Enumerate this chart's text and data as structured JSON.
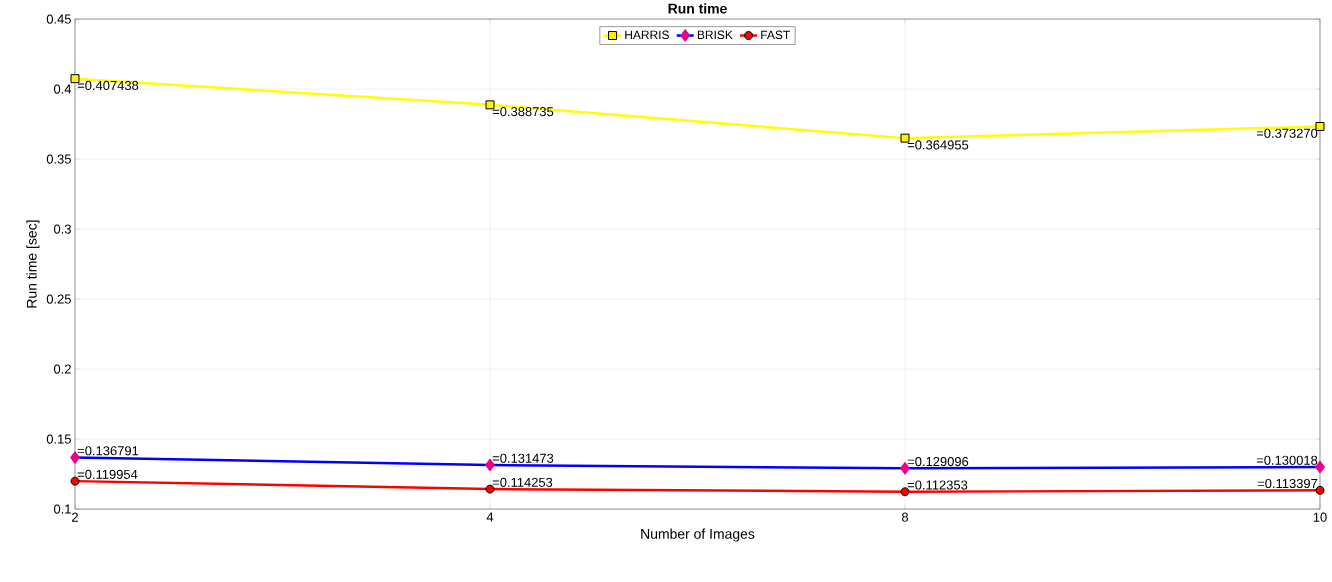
{
  "chart_data": {
    "type": "line",
    "title": "Run time",
    "xlabel": "Number of Images",
    "ylabel": "Run time [sec]",
    "categories": [
      "2",
      "4",
      "8",
      "10"
    ],
    "series": [
      {
        "name": "HARRIS",
        "color": "#ffff00",
        "marker": "square",
        "values": [
          0.407438,
          0.388735,
          0.364955,
          0.37327
        ],
        "value_labels": [
          "=0.407438",
          "=0.388735",
          "=0.364955",
          "=0.373270"
        ]
      },
      {
        "name": "BRISK",
        "color": "#0000ff",
        "marker": "diamond",
        "values": [
          0.136791,
          0.131473,
          0.129096,
          0.130018
        ],
        "value_labels": [
          "=0.136791",
          "=0.131473",
          "=0.129096",
          "=0.130018"
        ]
      },
      {
        "name": "FAST",
        "color": "#ff0000",
        "marker": "circle",
        "values": [
          0.119954,
          0.114253,
          0.112353,
          0.113397
        ],
        "value_labels": [
          "=0.119954",
          "=0.114253",
          "=0.112353",
          "=0.113397"
        ]
      }
    ],
    "ylim": [
      0.1,
      0.45
    ],
    "yticks": [
      0.1,
      0.15,
      0.2,
      0.25,
      0.3,
      0.35,
      0.4,
      0.45
    ],
    "grid": true,
    "legend": "top",
    "line_style": "solid"
  }
}
